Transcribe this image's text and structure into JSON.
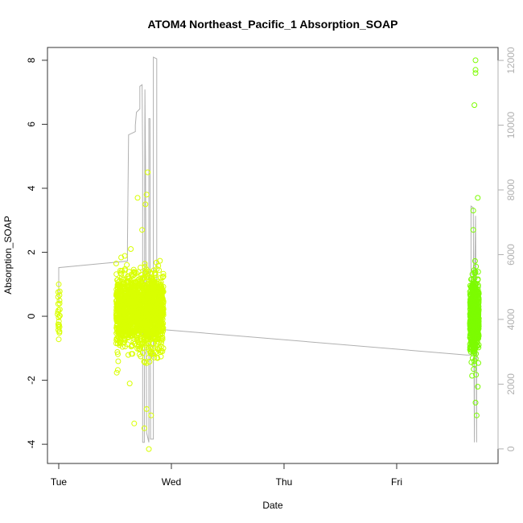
{
  "chart_data": {
    "type": "scatter",
    "title": "ATOM4 Northeast_Pacific_1 Absorption_SOAP",
    "xlabel": "Date",
    "ylabel": "Absorption_SOAP",
    "x_ticks": [
      "Tue",
      "Wed",
      "Thu",
      "Fri"
    ],
    "x_range_days": [
      -0.1,
      3.9
    ],
    "ylim": [
      -4.6,
      8.4
    ],
    "y_ticks": [
      -4,
      -2,
      0,
      2,
      4,
      6,
      8
    ],
    "y2lim": [
      -450,
      12400
    ],
    "y2_ticks": [
      0,
      2000,
      4000,
      6000,
      8000,
      10000,
      12000
    ],
    "grid": false,
    "legend": "none",
    "colors": {
      "early_points": "#d9ff00",
      "late_points": "#7cfc00",
      "depth_line": "#b0b0b0",
      "right_axis": "#b0b0b0",
      "box": "#333333"
    },
    "series": [
      {
        "kind": "points",
        "clusters": [
          {
            "x_center": 0.0,
            "x_spread": 0.01,
            "y_mean": 0.2,
            "y_sd": 0.45,
            "n": 22,
            "color": "#d9ff00"
          },
          {
            "x_center": 0.72,
            "x_spread": 0.21,
            "y_mean": 0.15,
            "y_sd": 0.55,
            "n": 1800,
            "color": "#d9ff00"
          },
          {
            "x_center": 3.69,
            "x_spread": 0.04,
            "y_mean": 0.0,
            "y_sd": 0.55,
            "n": 600,
            "color": "#7cfc00"
          }
        ],
        "outliers": [
          {
            "x": 0.0,
            "y": -0.72
          },
          {
            "x": 0.0,
            "y": 1.0
          },
          {
            "x": 0.79,
            "y": 4.5
          },
          {
            "x": 0.78,
            "y": 3.8
          },
          {
            "x": 0.77,
            "y": 3.5
          },
          {
            "x": 0.64,
            "y": 2.1
          },
          {
            "x": 0.7,
            "y": 3.7
          },
          {
            "x": 0.74,
            "y": 2.7
          },
          {
            "x": 0.8,
            "y": -4.15
          },
          {
            "x": 0.76,
            "y": -3.5
          },
          {
            "x": 0.67,
            "y": -3.35
          },
          {
            "x": 0.63,
            "y": -2.1
          },
          {
            "x": 0.82,
            "y": -3.1
          },
          {
            "x": 0.78,
            "y": -2.9
          },
          {
            "x": 3.7,
            "y": 8.0
          },
          {
            "x": 3.7,
            "y": 7.7
          },
          {
            "x": 3.7,
            "y": 7.6
          },
          {
            "x": 3.69,
            "y": 6.6
          },
          {
            "x": 3.68,
            "y": 3.3
          },
          {
            "x": 3.72,
            "y": 3.7
          },
          {
            "x": 3.68,
            "y": 2.7
          },
          {
            "x": 3.7,
            "y": -2.7
          },
          {
            "x": 3.71,
            "y": -3.1
          },
          {
            "x": 3.69,
            "y": -1.5
          },
          {
            "x": 3.72,
            "y": -2.2
          }
        ]
      },
      {
        "kind": "line",
        "axis": "right",
        "points": [
          [
            0.0,
            4500
          ],
          [
            0.0,
            5600
          ],
          [
            0.61,
            5800
          ],
          [
            0.61,
            6300
          ],
          [
            0.62,
            9700
          ],
          [
            0.68,
            9800
          ],
          [
            0.68,
            10000
          ],
          [
            0.69,
            10400
          ],
          [
            0.72,
            10500
          ],
          [
            0.72,
            11200
          ],
          [
            0.74,
            11250
          ],
          [
            0.745,
            9000
          ],
          [
            0.745,
            200
          ],
          [
            0.76,
            200
          ],
          [
            0.765,
            11100
          ],
          [
            0.77,
            9000
          ],
          [
            0.78,
            500
          ],
          [
            0.8,
            200
          ],
          [
            0.8,
            10200
          ],
          [
            0.81,
            10200
          ],
          [
            0.815,
            300
          ],
          [
            0.84,
            300
          ],
          [
            0.84,
            12100
          ],
          [
            0.87,
            12050
          ],
          [
            0.87,
            3700
          ],
          [
            3.62,
            2900
          ],
          [
            3.66,
            2900
          ],
          [
            3.66,
            7500
          ],
          [
            3.68,
            7450
          ],
          [
            3.69,
            200
          ],
          [
            3.69,
            4500
          ],
          [
            3.7,
            7200
          ],
          [
            3.71,
            200
          ],
          [
            3.71,
            3900
          ],
          [
            3.7,
            5200
          ],
          [
            3.7,
            6900
          ]
        ]
      }
    ]
  }
}
